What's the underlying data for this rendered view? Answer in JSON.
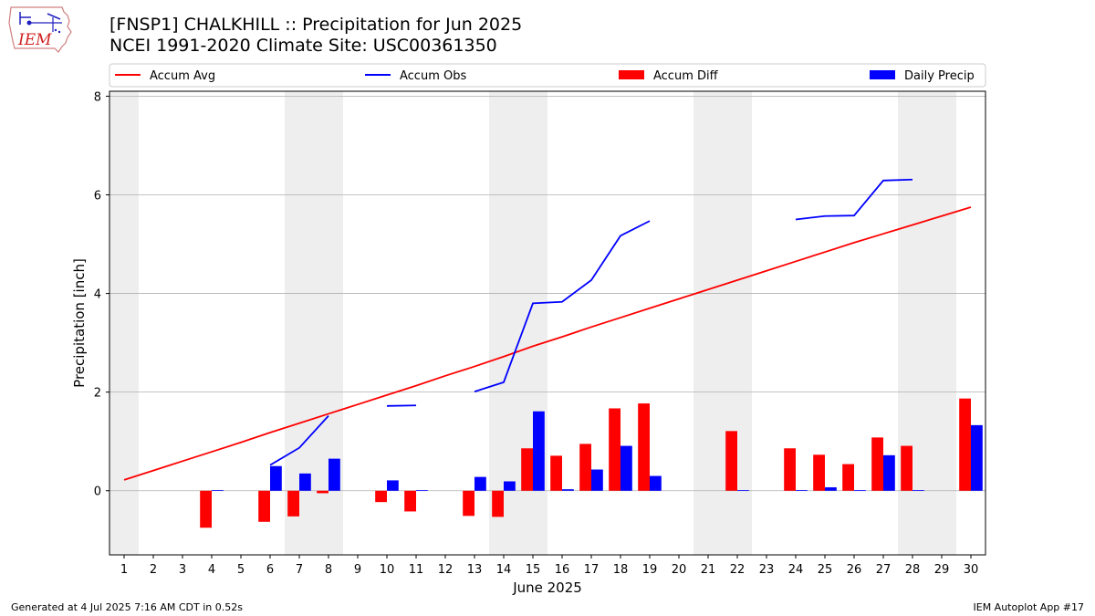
{
  "header": {
    "title_line1": "[FNSP1] CHALKHILL :: Precipitation for Jun 2025",
    "title_line2": "NCEI 1991-2020 Climate Site: USC00361350",
    "logo_text": "IEM"
  },
  "footer": {
    "left": "Generated at 4 Jul 2025 7:16 AM CDT in 0.52s",
    "right": "IEM Autoplot App #17"
  },
  "chart_data": {
    "type": "bar",
    "xlabel": "June 2025",
    "ylabel": "Precipitation [inch]",
    "ylim": [
      -1.3,
      8.1
    ],
    "xlim": [
      0.5,
      30.5
    ],
    "yticks": [
      0,
      2,
      4,
      6,
      8
    ],
    "grid": true,
    "legend_position": "top",
    "categories": [
      1,
      2,
      3,
      4,
      5,
      6,
      7,
      8,
      9,
      10,
      11,
      12,
      13,
      14,
      15,
      16,
      17,
      18,
      19,
      20,
      21,
      22,
      23,
      24,
      25,
      26,
      27,
      28,
      29,
      30
    ],
    "weekend_days": [
      1,
      7,
      8,
      14,
      15,
      21,
      22,
      28,
      29
    ],
    "colors": {
      "accum_avg": "#ff0000",
      "accum_obs": "#0000ff",
      "accum_diff": "#ff0000",
      "daily_precip": "#0000ff",
      "weekend_shade": "#eeeeee",
      "grid": "#b0b0b0"
    },
    "series": [
      {
        "name": "Accum Avg",
        "kind": "line",
        "values": [
          0.22,
          0.41,
          0.6,
          0.79,
          0.98,
          1.18,
          1.37,
          1.56,
          1.75,
          1.94,
          2.13,
          2.33,
          2.52,
          2.72,
          2.93,
          3.12,
          3.32,
          3.51,
          3.7,
          3.89,
          4.08,
          4.27,
          4.46,
          4.65,
          4.84,
          5.03,
          5.21,
          5.39,
          5.57,
          5.75
        ]
      },
      {
        "name": "Accum Obs",
        "kind": "line",
        "values": [
          null,
          null,
          null,
          null,
          null,
          0.52,
          0.87,
          1.52,
          null,
          1.72,
          1.73,
          null,
          2.01,
          2.2,
          3.8,
          3.83,
          4.27,
          5.17,
          5.47,
          null,
          null,
          null,
          null,
          5.5,
          5.57,
          5.58,
          6.29,
          6.31,
          null,
          null
        ]
      },
      {
        "name": "Accum Diff",
        "kind": "bar",
        "values": [
          0,
          0,
          0,
          -0.75,
          0,
          -0.63,
          -0.52,
          -0.05,
          0,
          -0.23,
          -0.42,
          0,
          -0.51,
          -0.53,
          0.86,
          0.71,
          0.95,
          1.67,
          1.77,
          0,
          0,
          1.21,
          0,
          0.86,
          0.73,
          0.54,
          1.08,
          0.91,
          0,
          1.87
        ]
      },
      {
        "name": "Daily Precip",
        "kind": "bar",
        "values": [
          0,
          0,
          0,
          0.01,
          0,
          0.5,
          0.35,
          0.65,
          0,
          0.21,
          0.01,
          0,
          0.28,
          0.19,
          1.61,
          0.03,
          0.43,
          0.91,
          0.3,
          0,
          0,
          0.01,
          0,
          0.01,
          0.07,
          0.01,
          0.72,
          0.01,
          0,
          1.33
        ]
      }
    ]
  }
}
